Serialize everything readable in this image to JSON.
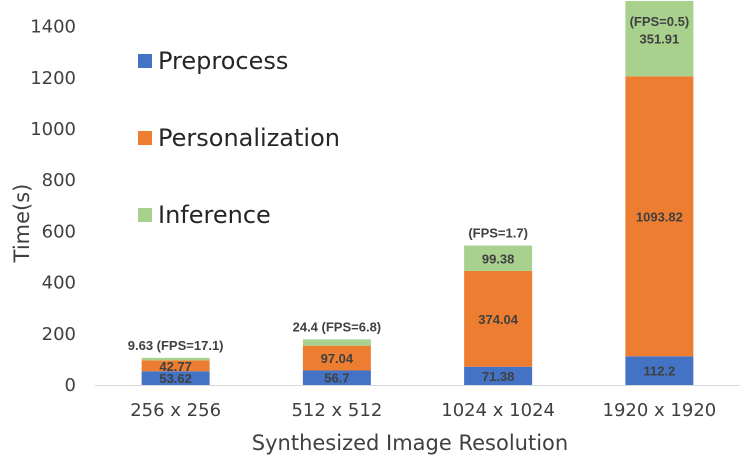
{
  "chart_data": {
    "type": "bar",
    "stacked": true,
    "categories": [
      "256 x 256",
      "512 x 512",
      "1024 x 1024",
      "1920 x 1920"
    ],
    "series": [
      {
        "name": "Preprocess",
        "color": "#4472C4",
        "values": [
          53.62,
          56.7,
          71.38,
          112.2
        ],
        "labels": [
          "53.62",
          "56.7",
          "71.38",
          "112.2"
        ]
      },
      {
        "name": "Personalization",
        "color": "#ED7D31",
        "values": [
          42.77,
          97.04,
          374.04,
          1093.82
        ],
        "labels": [
          "42.77",
          "97.04",
          "374.04",
          "1093.82"
        ]
      },
      {
        "name": "Inference",
        "color": "#A9D18E",
        "values": [
          9.63,
          24.4,
          99.38,
          351.91
        ],
        "labels": [
          "",
          "",
          "99.38",
          "351.91"
        ]
      }
    ],
    "annotations": [
      "9.63 (FPS=17.1)",
      "24.4 (FPS=6.8)",
      "(FPS=1.7)",
      "(FPS=0.5)"
    ],
    "xlabel": "Synthesized Image Resolution",
    "ylabel": "Time(s)",
    "ylim": [
      0,
      1500
    ],
    "yticks": [
      0,
      200,
      400,
      600,
      800,
      1000,
      1200,
      1400
    ],
    "grid": false,
    "legend_position": "top-left"
  }
}
